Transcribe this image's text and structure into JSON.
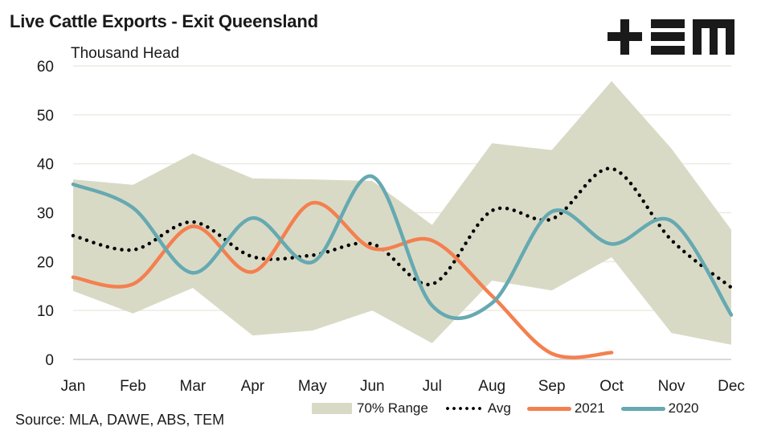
{
  "chart_data": {
    "type": "line",
    "title": "Live Cattle Exports - Exit Queensland",
    "ylabel": "Thousand Head",
    "xlabel": "",
    "categories": [
      "Jan",
      "Feb",
      "Mar",
      "Apr",
      "May",
      "Jun",
      "Jul",
      "Aug",
      "Sep",
      "Oct",
      "Nov",
      "Dec"
    ],
    "ylim": [
      0,
      60
    ],
    "yticks": [
      0,
      10,
      20,
      30,
      40,
      50,
      60
    ],
    "grid": true,
    "legend_position": "bottom-right",
    "range": {
      "name": "70% Range",
      "color": "#d9dac6",
      "upper": [
        36.8,
        35.7,
        42.1,
        37.0,
        36.8,
        36.5,
        27.5,
        44.2,
        42.8,
        56.9,
        43.1,
        26.5
      ],
      "lower": [
        14.0,
        9.4,
        14.6,
        4.9,
        5.9,
        10.0,
        3.3,
        16.1,
        14.1,
        20.9,
        5.4,
        3.0
      ]
    },
    "series": [
      {
        "name": "Avg",
        "color": "#000000",
        "style": "dotted",
        "values": [
          25.3,
          22.4,
          28.1,
          21.0,
          21.3,
          23.6,
          15.4,
          30.4,
          28.7,
          39.0,
          24.4,
          14.7
        ]
      },
      {
        "name": "2021",
        "color": "#f4804f",
        "style": "solid",
        "values": [
          16.8,
          15.4,
          27.2,
          17.9,
          32.0,
          22.7,
          24.3,
          13.0,
          1.2,
          1.4,
          null,
          null
        ]
      },
      {
        "name": "2020",
        "color": "#66a9b1",
        "style": "solid",
        "values": [
          35.8,
          31.0,
          17.7,
          28.9,
          19.9,
          37.4,
          11.0,
          11.5,
          30.2,
          23.6,
          28.3,
          9.1
        ]
      }
    ]
  },
  "legend": {
    "range_label": "70% Range",
    "avg_label": "Avg",
    "y2021_label": "2021",
    "y2020_label": "2020"
  },
  "source": "Source: MLA, DAWE, ABS, TEM",
  "logo": "TEM",
  "colors": {
    "range": "#d9dac6",
    "avg": "#000000",
    "y2021": "#f4804f",
    "y2020": "#66a9b1",
    "grid": "#ecece4"
  }
}
